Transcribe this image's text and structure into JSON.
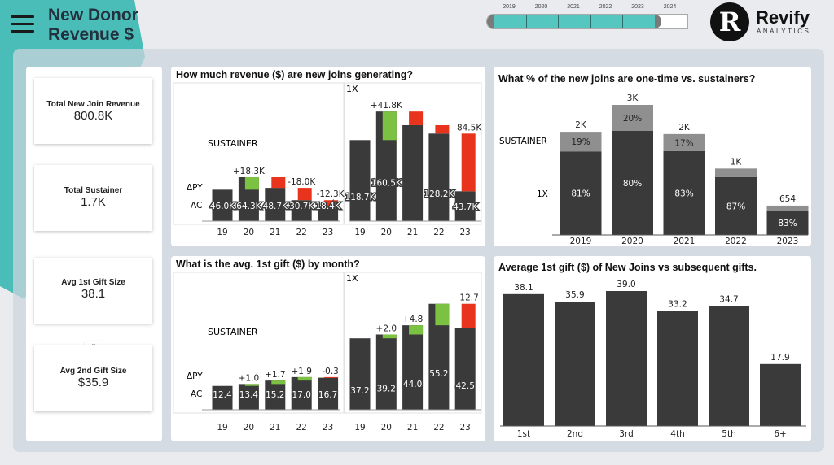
{
  "header": {
    "title_line1": "New Donor",
    "title_line2": "Revenue $",
    "menu_icon": "hamburger-icon"
  },
  "year_slicer": {
    "years": [
      "2019",
      "2020",
      "2021",
      "2022",
      "2023",
      "2024"
    ],
    "selected": [
      "2019",
      "2020",
      "2021",
      "2022",
      "2023"
    ],
    "fill_color": "#56c6c1"
  },
  "logo": {
    "name": "Revify",
    "sub": "ANALYTICS",
    "mark": "R"
  },
  "kpis": [
    {
      "label": "Total New Join Revenue",
      "value": "800.8K"
    },
    {
      "label": "Total Sustainer",
      "value": "1.7K"
    },
    {
      "label": "Avg 1st Gift Size",
      "value": "38.1"
    },
    {
      "label": "Avg 2nd Gift Size",
      "value": "$35.9"
    }
  ],
  "colors": {
    "bar": "#3a3a3a",
    "positive": "#7cc242",
    "negative": "#e8341c",
    "sustainer": "#8f8f8f"
  },
  "chart_data": [
    {
      "type": "bar",
      "variant": "variance",
      "title": "How much revenue ($) are new joins generating?",
      "categories": [
        "19",
        "20",
        "21",
        "22",
        "23"
      ],
      "row_labels": {
        "delta": "ΔPY",
        "ac": "AC"
      },
      "panels": [
        {
          "name": "SUSTAINER",
          "unit": "K",
          "values": [
            46.0,
            64.3,
            48.7,
            30.7,
            18.4
          ],
          "value_labels": [
            "46.0K",
            "64.3K",
            "48.7K",
            "30.7K",
            "18.4K"
          ],
          "delta_labels": [
            null,
            "+18.3K",
            null,
            "-18.0K",
            "-12.3K"
          ]
        },
        {
          "name": "1X",
          "unit": "K",
          "values": [
            118.7,
            160.5,
            140.5,
            128.2,
            43.7
          ],
          "value_labels": [
            "118.7K",
            "160.5K",
            null,
            "128.2K",
            "43.7K"
          ],
          "delta_labels": [
            null,
            "+41.8K",
            null,
            null,
            "-84.5K"
          ]
        }
      ]
    },
    {
      "type": "bar",
      "variant": "variance",
      "title": "What is the avg. 1st gift ($) by month?",
      "categories": [
        "19",
        "20",
        "21",
        "22",
        "23"
      ],
      "row_labels": {
        "delta": "ΔPY",
        "ac": "AC"
      },
      "panels": [
        {
          "name": "SUSTAINER",
          "values": [
            12.4,
            13.4,
            15.2,
            17.0,
            16.7
          ],
          "value_labels": [
            "12.4",
            "13.4",
            "15.2",
            "17.0",
            "16.7"
          ],
          "delta_labels": [
            null,
            "+1.0",
            "+1.7",
            "+1.9",
            "-0.3"
          ]
        },
        {
          "name": "1X",
          "values": [
            37.2,
            39.2,
            44.0,
            55.2,
            42.5
          ],
          "value_labels": [
            "37.2",
            "39.2",
            "44.0",
            "55.2",
            "42.5"
          ],
          "delta_labels": [
            null,
            "+2.0",
            "+4.8",
            null,
            "-12.7"
          ]
        }
      ]
    },
    {
      "type": "bar",
      "variant": "stacked-100",
      "title": "What % of the new joins are one-time vs. sustainers?",
      "categories": [
        "2019",
        "2020",
        "2021",
        "2022",
        "2023"
      ],
      "totals": [
        2300,
        2900,
        2250,
        1480,
        654
      ],
      "total_labels": [
        "2K",
        "3K",
        "2K",
        "1K",
        "654"
      ],
      "series": [
        {
          "name": "1X",
          "values": [
            81,
            80,
            83,
            87,
            83
          ],
          "labels": [
            "81%",
            "80%",
            "83%",
            "87%",
            "83%"
          ]
        },
        {
          "name": "SUSTAINER",
          "values": [
            19,
            20,
            17,
            13,
            17
          ],
          "labels": [
            "19%",
            "20%",
            "17%",
            null,
            null
          ]
        }
      ]
    },
    {
      "type": "bar",
      "title": "Average 1st gift ($) of New Joins vs subsequent gifts.",
      "categories": [
        "1st",
        "2nd",
        "3rd",
        "4th",
        "5th",
        "6+"
      ],
      "values": [
        38.1,
        35.9,
        39.0,
        33.2,
        34.7,
        17.9
      ],
      "value_labels": [
        "38.1",
        "35.9",
        "39.0",
        "33.2",
        "34.7",
        "17.9"
      ]
    }
  ]
}
